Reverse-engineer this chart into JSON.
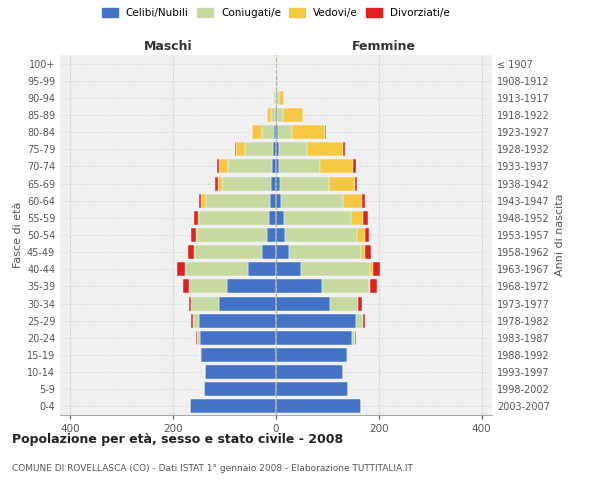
{
  "age_groups": [
    "0-4",
    "5-9",
    "10-14",
    "15-19",
    "20-24",
    "25-29",
    "30-34",
    "35-39",
    "40-44",
    "45-49",
    "50-54",
    "55-59",
    "60-64",
    "65-69",
    "70-74",
    "75-79",
    "80-84",
    "85-89",
    "90-94",
    "95-99",
    "100+"
  ],
  "birth_years": [
    "2003-2007",
    "1998-2002",
    "1993-1997",
    "1988-1992",
    "1983-1987",
    "1978-1982",
    "1973-1977",
    "1968-1972",
    "1963-1967",
    "1958-1962",
    "1953-1957",
    "1948-1952",
    "1943-1947",
    "1938-1942",
    "1933-1937",
    "1928-1932",
    "1923-1927",
    "1918-1922",
    "1913-1917",
    "1908-1912",
    "≤ 1907"
  ],
  "maschi_celibi": [
    168,
    140,
    138,
    145,
    148,
    150,
    110,
    95,
    55,
    28,
    18,
    14,
    12,
    10,
    8,
    5,
    3,
    2,
    0,
    0,
    0
  ],
  "maschi_coniugati": [
    0,
    0,
    0,
    2,
    5,
    12,
    55,
    75,
    120,
    130,
    135,
    135,
    125,
    95,
    85,
    55,
    25,
    8,
    3,
    1,
    0
  ],
  "maschi_vedovi": [
    0,
    0,
    0,
    0,
    0,
    0,
    0,
    0,
    2,
    2,
    3,
    3,
    8,
    8,
    18,
    18,
    18,
    8,
    2,
    0,
    0
  ],
  "maschi_divorziati": [
    0,
    0,
    0,
    0,
    2,
    3,
    5,
    10,
    15,
    12,
    10,
    8,
    5,
    5,
    3,
    2,
    0,
    0,
    0,
    0,
    0
  ],
  "femmine_celibi": [
    165,
    140,
    130,
    138,
    148,
    155,
    105,
    90,
    48,
    25,
    18,
    15,
    10,
    8,
    5,
    5,
    3,
    2,
    0,
    0,
    0
  ],
  "femmine_coniugati": [
    0,
    0,
    0,
    2,
    5,
    15,
    55,
    90,
    135,
    140,
    140,
    130,
    120,
    95,
    80,
    55,
    28,
    12,
    5,
    1,
    0
  ],
  "femmine_vedovi": [
    0,
    0,
    0,
    0,
    0,
    0,
    0,
    2,
    5,
    8,
    15,
    25,
    38,
    50,
    65,
    70,
    65,
    38,
    10,
    2,
    1
  ],
  "femmine_divorziati": [
    0,
    0,
    0,
    0,
    2,
    3,
    8,
    15,
    15,
    12,
    8,
    8,
    5,
    5,
    5,
    5,
    2,
    0,
    0,
    0,
    0
  ],
  "color_celibi": "#4472C4",
  "color_coniugati": "#c5d9a0",
  "color_vedovi": "#f5c842",
  "color_divorziati": "#e02020",
  "color_background": "#f0f0f0",
  "color_grid": "#cccccc",
  "title": "Popolazione per età, sesso e stato civile - 2008",
  "subtitle": "COMUNE DI ROVELLASCA (CO) - Dati ISTAT 1° gennaio 2008 - Elaborazione TUTTITALIA.IT",
  "xlabel_left": "Maschi",
  "xlabel_right": "Femmine",
  "ylabel_left": "Fasce di età",
  "ylabel_right": "Anni di nascita",
  "xlim": 420
}
